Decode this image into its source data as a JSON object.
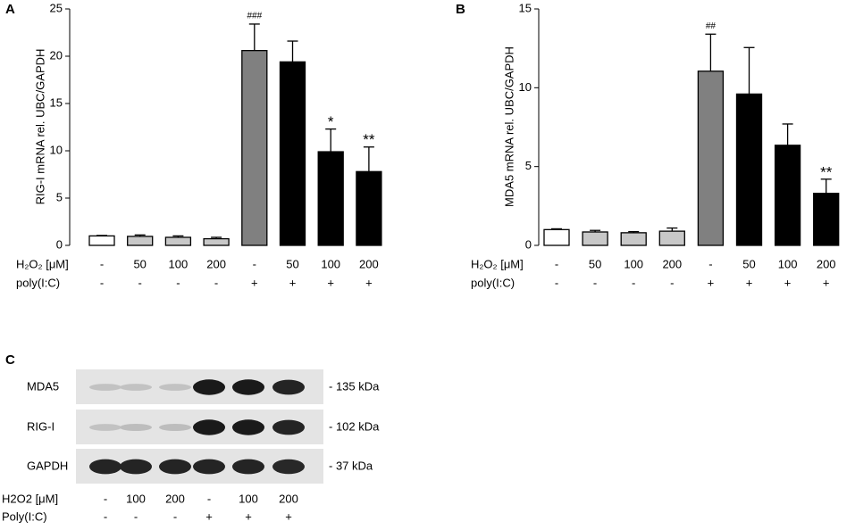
{
  "chart_data": [
    {
      "type": "bar",
      "panel": "A",
      "y_label": "RIG-I mRNA rel. UBC/GAPDH",
      "ylim": [
        0,
        25
      ],
      "yticks": [
        0,
        5,
        10,
        15,
        20,
        25
      ],
      "category_rows": [
        {
          "label": "H₂O₂ [μM]",
          "values": [
            "-",
            "50",
            "100",
            "200",
            "-",
            "50",
            "100",
            "200"
          ]
        },
        {
          "label": "poly(I:C)",
          "values": [
            "-",
            "-",
            "-",
            "-",
            "+",
            "+",
            "+",
            "+"
          ]
        }
      ],
      "values": [
        1,
        0.95,
        0.85,
        0.7,
        20.6,
        19.4,
        9.9,
        7.8
      ],
      "errors": [
        0.05,
        0.15,
        0.15,
        0.15,
        2.8,
        2.2,
        2.4,
        2.6
      ],
      "colors": [
        "#ffffff",
        "#c8c8c8",
        "#c8c8c8",
        "#c8c8c8",
        "#808080",
        "#000000",
        "#000000",
        "#000000"
      ],
      "significance": [
        null,
        null,
        null,
        null,
        "###",
        null,
        "*",
        "**"
      ]
    },
    {
      "type": "bar",
      "panel": "B",
      "y_label": "MDA5 mRNA rel. UBC/GAPDH",
      "ylim": [
        0,
        15
      ],
      "yticks": [
        0,
        5,
        10,
        15
      ],
      "category_rows": [
        {
          "label": "H₂O₂ [μM]",
          "values": [
            "-",
            "50",
            "100",
            "200",
            "-",
            "50",
            "100",
            "200"
          ]
        },
        {
          "label": "poly(I:C)",
          "values": [
            "-",
            "-",
            "-",
            "-",
            "+",
            "+",
            "+",
            "+"
          ]
        }
      ],
      "values": [
        1,
        0.85,
        0.8,
        0.9,
        11.05,
        9.6,
        6.35,
        3.3
      ],
      "errors": [
        0.05,
        0.1,
        0.07,
        0.2,
        2.35,
        2.95,
        1.35,
        0.9
      ],
      "colors": [
        "#ffffff",
        "#c8c8c8",
        "#c8c8c8",
        "#c8c8c8",
        "#808080",
        "#000000",
        "#000000",
        "#000000"
      ],
      "significance": [
        null,
        null,
        null,
        null,
        "##",
        null,
        null,
        "**"
      ]
    }
  ],
  "blot": {
    "panel": "C",
    "rows": [
      {
        "label": "MDA5",
        "size": "- 135 kDa"
      },
      {
        "label": "RIG-I",
        "size": "- 102 kDa"
      },
      {
        "label": "GAPDH",
        "size": "- 37 kDa"
      }
    ],
    "lane_rows": [
      {
        "label": "H2O2 [μM]",
        "values": [
          "-",
          "100",
          "200",
          "-",
          "100",
          "200"
        ]
      },
      {
        "label": "Poly(I:C)",
        "values": [
          "-",
          "-",
          "-",
          "+",
          "+",
          "+"
        ]
      }
    ]
  }
}
